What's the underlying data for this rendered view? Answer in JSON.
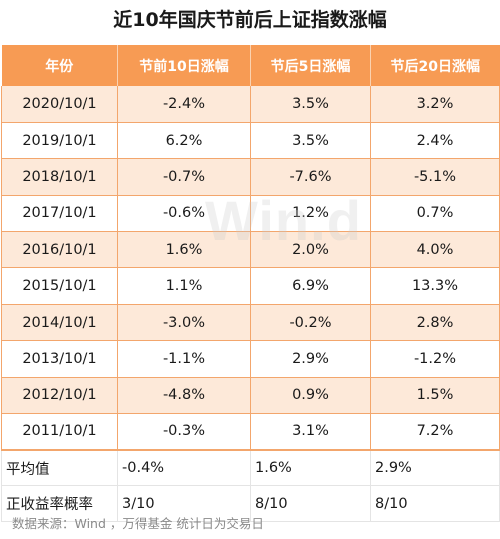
{
  "title": "近10年国庆节前后上证指数涨幅",
  "columns": [
    "年份",
    "节前10日涨幅",
    "节后5日涨幅",
    "节后20日涨幅"
  ],
  "rows": [
    [
      "2020/10/1",
      "-2.4%",
      "3.5%",
      "3.2%"
    ],
    [
      "2019/10/1",
      "6.2%",
      "3.5%",
      "2.4%"
    ],
    [
      "2018/10/1",
      "-0.7%",
      "-7.6%",
      "-5.1%"
    ],
    [
      "2017/10/1",
      "-0.6%",
      "1.2%",
      "0.7%"
    ],
    [
      "2016/10/1",
      "1.6%",
      "2.0%",
      "4.0%"
    ],
    [
      "2015/10/1",
      "1.1%",
      "6.9%",
      "13.3%"
    ],
    [
      "2014/10/1",
      "-3.0%",
      "-0.2%",
      "2.8%"
    ],
    [
      "2013/10/1",
      "-1.1%",
      "2.9%",
      "-1.2%"
    ],
    [
      "2012/10/1",
      "-4.8%",
      "0.9%",
      "1.5%"
    ],
    [
      "2011/10/1",
      "-0.3%",
      "3.1%",
      "7.2%"
    ]
  ],
  "summary": [
    [
      "平均值",
      "-0.4%",
      "1.6%",
      "2.9%"
    ],
    [
      "正收益率概率",
      "3/10",
      "8/10",
      "8/10"
    ]
  ],
  "watermark": "Win.d",
  "source": "数据来源：Wind ，万得基金    统计日为交易日",
  "colors": {
    "header": "#f79b54",
    "band": "#fde9d9",
    "border": "#f3a66c"
  }
}
